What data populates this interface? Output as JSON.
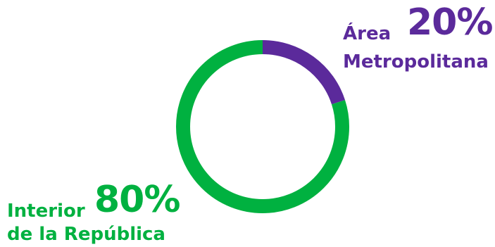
{
  "chart_data": {
    "type": "pie",
    "style": "donut",
    "title": "",
    "slices": [
      {
        "label_line1": "Área",
        "label_line2": "Metropolitana",
        "value": 20,
        "value_label": "20%",
        "color": "#5b2a9b"
      },
      {
        "label_line1": "Interior",
        "label_line2": "de la República",
        "value": 80,
        "value_label": "80%",
        "color": "#00b140"
      }
    ]
  }
}
